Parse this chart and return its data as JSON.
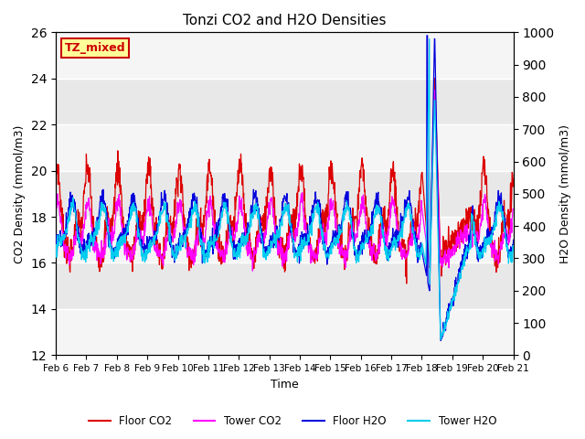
{
  "title": "Tonzi CO2 and H2O Densities",
  "xlabel": "Time",
  "ylabel_left": "CO2 Density (mmol/m3)",
  "ylabel_right": "H2O Density (mmol/m3)",
  "ylim_left": [
    12,
    26
  ],
  "ylim_right": [
    0,
    1000
  ],
  "yticks_left": [
    12,
    14,
    16,
    18,
    20,
    22,
    24,
    26
  ],
  "yticks_right": [
    0,
    100,
    200,
    300,
    400,
    500,
    600,
    700,
    800,
    900,
    1000
  ],
  "xtick_labels": [
    "Feb 6",
    "Feb 7",
    "Feb 8",
    "Feb 9",
    "Feb 10",
    "Feb 11",
    "Feb 12",
    "Feb 13",
    "Feb 14",
    "Feb 15",
    "Feb 16",
    "Feb 17",
    "Feb 18",
    "Feb 19",
    "Feb 20",
    "Feb 21"
  ],
  "num_days": 15,
  "points_per_day": 96,
  "floor_co2_color": "#dd0000",
  "tower_co2_color": "#ff00ff",
  "floor_h2o_color": "#0000dd",
  "tower_h2o_color": "#00ccee",
  "tz_label": "TZ_mixed",
  "tz_bg_color": "#ffff99",
  "tz_text_color": "#cc0000",
  "legend_labels": [
    "Floor CO2",
    "Tower CO2",
    "Floor H2O",
    "Tower H2O"
  ],
  "spike_day": 12.25,
  "bg_color": "#e8e8e8",
  "band_color": "#f5f5f5"
}
